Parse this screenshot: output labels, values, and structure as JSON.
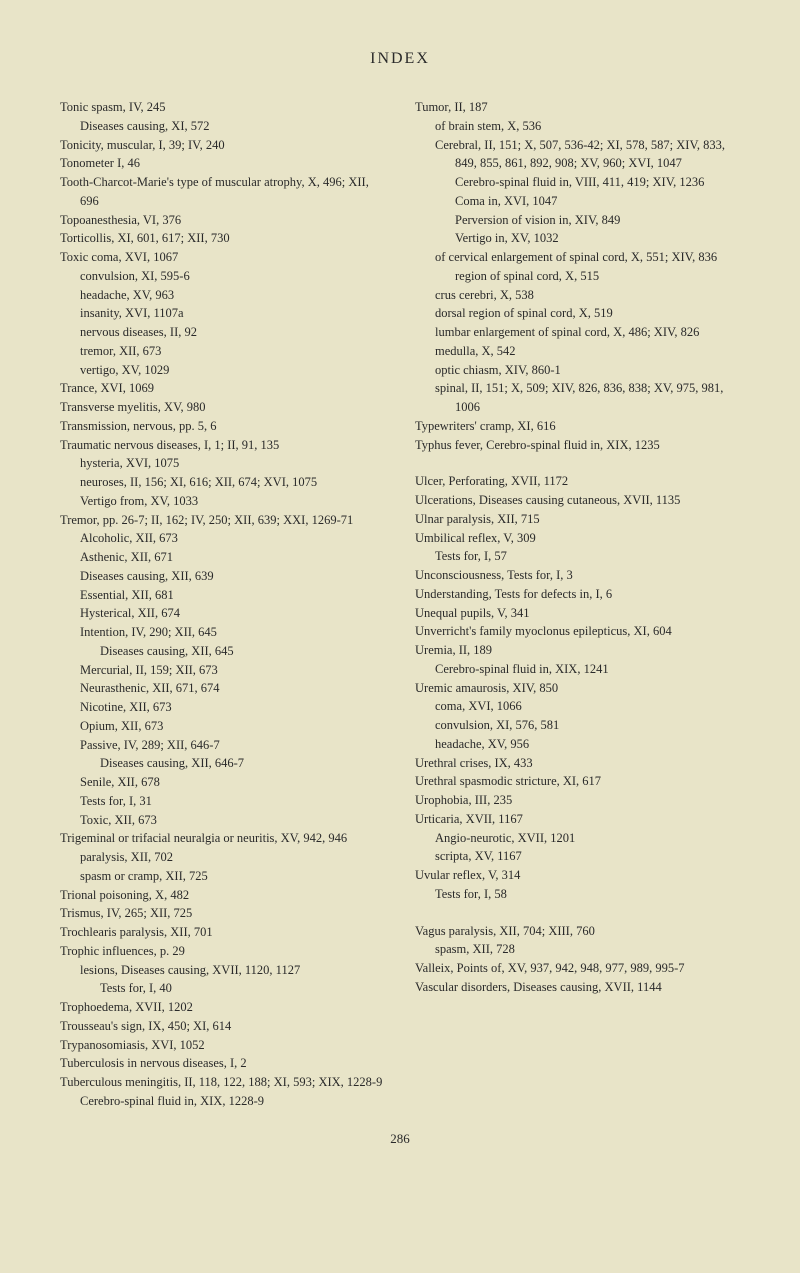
{
  "title": "INDEX",
  "pageNumber": "286",
  "leftColumn": [
    {
      "text": "Tonic spasm, IV, 245",
      "level": 0
    },
    {
      "text": "Diseases causing, XI, 572",
      "level": 1
    },
    {
      "text": "Tonicity, muscular, I, 39; IV, 240",
      "level": 0
    },
    {
      "text": "Tonometer I, 46",
      "level": 0
    },
    {
      "text": "Tooth-Charcot-Marie's type of muscular atrophy, X, 496; XII, 696",
      "level": 0
    },
    {
      "text": "Topoanesthesia, VI, 376",
      "level": 0
    },
    {
      "text": "Torticollis, XI, 601, 617; XII, 730",
      "level": 0
    },
    {
      "text": "Toxic coma, XVI, 1067",
      "level": 0
    },
    {
      "text": "convulsion, XI, 595-6",
      "level": 1
    },
    {
      "text": "headache, XV, 963",
      "level": 1
    },
    {
      "text": "insanity, XVI, 1107a",
      "level": 1
    },
    {
      "text": "nervous diseases, II, 92",
      "level": 1
    },
    {
      "text": "tremor, XII, 673",
      "level": 1
    },
    {
      "text": "vertigo, XV, 1029",
      "level": 1
    },
    {
      "text": "Trance, XVI, 1069",
      "level": 0
    },
    {
      "text": "Transverse myelitis, XV, 980",
      "level": 0
    },
    {
      "text": "Transmission, nervous, pp. 5, 6",
      "level": 0
    },
    {
      "text": "Traumatic nervous diseases, I, 1; II, 91, 135",
      "level": 0
    },
    {
      "text": "hysteria, XVI, 1075",
      "level": 1
    },
    {
      "text": "neuroses, II, 156; XI, 616; XII, 674; XVI, 1075",
      "level": 1
    },
    {
      "text": "Vertigo from, XV, 1033",
      "level": 1
    },
    {
      "text": "Tremor, pp. 26-7; II, 162; IV, 250; XII, 639; XXI, 1269-71",
      "level": 0
    },
    {
      "text": "Alcoholic, XII, 673",
      "level": 1
    },
    {
      "text": "Asthenic, XII, 671",
      "level": 1
    },
    {
      "text": "Diseases causing, XII, 639",
      "level": 1
    },
    {
      "text": "Essential, XII, 681",
      "level": 1
    },
    {
      "text": "Hysterical, XII, 674",
      "level": 1
    },
    {
      "text": "Intention, IV, 290; XII, 645",
      "level": 1
    },
    {
      "text": "Diseases causing, XII, 645",
      "level": 2
    },
    {
      "text": "Mercurial, II, 159; XII, 673",
      "level": 1
    },
    {
      "text": "Neurasthenic, XII, 671, 674",
      "level": 1
    },
    {
      "text": "Nicotine, XII, 673",
      "level": 1
    },
    {
      "text": "Opium, XII, 673",
      "level": 1
    },
    {
      "text": "Passive, IV, 289; XII, 646-7",
      "level": 1
    },
    {
      "text": "Diseases causing, XII, 646-7",
      "level": 2
    },
    {
      "text": "Senile, XII, 678",
      "level": 1
    },
    {
      "text": "Tests for, I, 31",
      "level": 1
    },
    {
      "text": "Toxic, XII, 673",
      "level": 1
    },
    {
      "text": "Trigeminal or trifacial neuralgia or neuritis, XV, 942, 946",
      "level": 0
    },
    {
      "text": "paralysis, XII, 702",
      "level": 1
    },
    {
      "text": "spasm or cramp, XII, 725",
      "level": 1
    },
    {
      "text": "Trional poisoning, X, 482",
      "level": 0
    },
    {
      "text": "Trismus, IV, 265; XII, 725",
      "level": 0
    },
    {
      "text": "Trochlearis paralysis, XII, 701",
      "level": 0
    },
    {
      "text": "Trophic influences, p. 29",
      "level": 0
    },
    {
      "text": "lesions, Diseases causing, XVII, 1120, 1127",
      "level": 1
    },
    {
      "text": "Tests for, I, 40",
      "level": 2
    },
    {
      "text": "Trophoedema, XVII, 1202",
      "level": 0
    },
    {
      "text": "Trousseau's sign, IX, 450; XI, 614",
      "level": 0
    },
    {
      "text": "Trypanosomiasis, XVI, 1052",
      "level": 0
    },
    {
      "text": "Tuberculosis in nervous diseases, I, 2",
      "level": 0
    },
    {
      "text": "Tuberculous meningitis, II, 118, 122, 188; XI, 593; XIX, 1228-9",
      "level": 0
    },
    {
      "text": "Cerebro-spinal fluid in, XIX, 1228-9",
      "level": 1
    }
  ],
  "rightColumn": [
    {
      "text": "Tumor, II, 187",
      "level": 0
    },
    {
      "text": "of brain stem, X, 536",
      "level": 1
    },
    {
      "text": "Cerebral, II, 151; X, 507, 536-42; XI, 578, 587; XIV, 833, 849, 855, 861, 892, 908; XV, 960; XVI, 1047",
      "level": 1
    },
    {
      "text": "Cerebro-spinal fluid in, VIII, 411, 419; XIV, 1236",
      "level": 2
    },
    {
      "text": "Coma in, XVI, 1047",
      "level": 2
    },
    {
      "text": "Perversion of vision in, XIV, 849",
      "level": 2
    },
    {
      "text": "Vertigo in, XV, 1032",
      "level": 2
    },
    {
      "text": "of cervical enlargement of spinal cord, X, 551; XIV, 836",
      "level": 1
    },
    {
      "text": "region of spinal cord, X, 515",
      "level": 2
    },
    {
      "text": "crus cerebri, X, 538",
      "level": 1
    },
    {
      "text": "dorsal region of spinal cord, X, 519",
      "level": 1
    },
    {
      "text": "lumbar enlargement of spinal cord, X, 486; XIV, 826",
      "level": 1
    },
    {
      "text": "medulla, X, 542",
      "level": 1
    },
    {
      "text": "optic chiasm, XIV, 860-1",
      "level": 1
    },
    {
      "text": "spinal, II, 151; X, 509; XIV, 826, 836, 838; XV, 975, 981, 1006",
      "level": 1
    },
    {
      "text": "Typewriters' cramp, XI, 616",
      "level": 0
    },
    {
      "text": "Typhus fever, Cerebro-spinal fluid in, XIX, 1235",
      "level": 0
    },
    {
      "text": "",
      "level": -1
    },
    {
      "text": "Ulcer, Perforating, XVII, 1172",
      "level": 0
    },
    {
      "text": "Ulcerations, Diseases causing cutaneous, XVII, 1135",
      "level": 0
    },
    {
      "text": "Ulnar paralysis, XII, 715",
      "level": 0
    },
    {
      "text": "Umbilical reflex, V, 309",
      "level": 0
    },
    {
      "text": "Tests for, I, 57",
      "level": 1
    },
    {
      "text": "Unconsciousness, Tests for, I, 3",
      "level": 0
    },
    {
      "text": "Understanding, Tests for defects in, I, 6",
      "level": 0
    },
    {
      "text": "Unequal pupils, V, 341",
      "level": 0
    },
    {
      "text": "Unverricht's family myoclonus epilepticus, XI, 604",
      "level": 0
    },
    {
      "text": "Uremia, II, 189",
      "level": 0
    },
    {
      "text": "Cerebro-spinal fluid in, XIX, 1241",
      "level": 1
    },
    {
      "text": "Uremic amaurosis, XIV, 850",
      "level": 0
    },
    {
      "text": "coma, XVI, 1066",
      "level": 1
    },
    {
      "text": "convulsion, XI, 576, 581",
      "level": 1
    },
    {
      "text": "headache, XV, 956",
      "level": 1
    },
    {
      "text": "Urethral crises, IX, 433",
      "level": 0
    },
    {
      "text": "Urethral spasmodic stricture, XI, 617",
      "level": 0
    },
    {
      "text": "Urophobia, III, 235",
      "level": 0
    },
    {
      "text": "Urticaria, XVII, 1167",
      "level": 0
    },
    {
      "text": "Angio-neurotic, XVII, 1201",
      "level": 1
    },
    {
      "text": "scripta, XV, 1167",
      "level": 1
    },
    {
      "text": "Uvular reflex, V, 314",
      "level": 0
    },
    {
      "text": "Tests for, I, 58",
      "level": 1
    },
    {
      "text": "",
      "level": -1
    },
    {
      "text": "Vagus paralysis, XII, 704; XIII, 760",
      "level": 0
    },
    {
      "text": "spasm, XII, 728",
      "level": 1
    },
    {
      "text": "Valleix, Points of, XV, 937, 942, 948, 977, 989, 995-7",
      "level": 0
    },
    {
      "text": "Vascular disorders, Diseases causing, XVII, 1144",
      "level": 0
    }
  ]
}
